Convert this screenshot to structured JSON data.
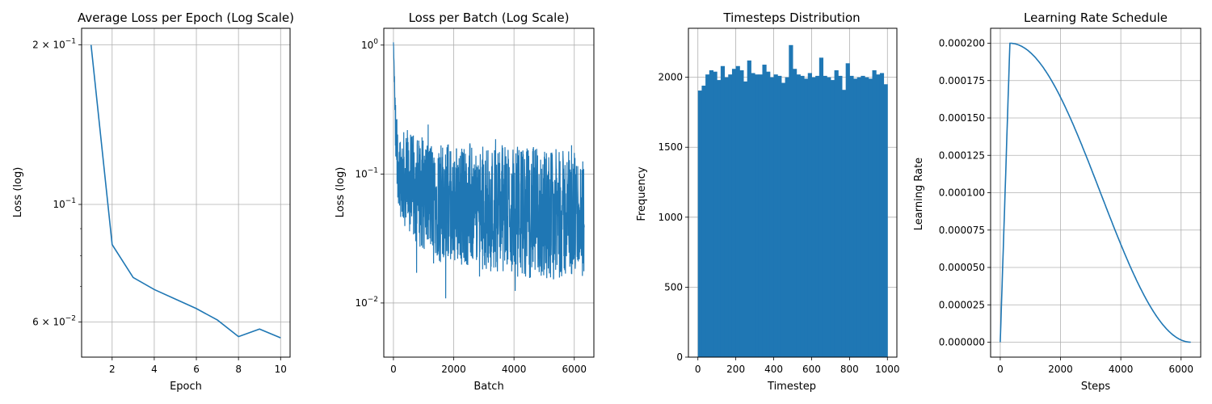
{
  "chart_data": [
    {
      "id": "p1",
      "type": "line",
      "title": "Average Loss per Epoch (Log Scale)",
      "xlabel": "Epoch",
      "ylabel": "Loss (log)",
      "yscale": "log",
      "xlim": [
        0.55,
        10.45
      ],
      "ylim": [
        0.0515,
        0.215
      ],
      "grid": true,
      "color": "#1f77b4",
      "x": [
        1,
        2,
        3,
        4,
        5,
        6,
        7,
        8,
        9,
        10
      ],
      "y": [
        0.2,
        0.084,
        0.0728,
        0.0691,
        0.0663,
        0.0636,
        0.0605,
        0.0563,
        0.0582,
        0.056
      ],
      "xticks": [
        2,
        4,
        6,
        8,
        10
      ],
      "xtick_labels": [
        "2",
        "4",
        "6",
        "8",
        "10"
      ],
      "yticks": [
        0.06,
        0.1,
        0.2
      ],
      "ytick_labels": [
        {
          "base": "6 × 10",
          "exp": "−2"
        },
        {
          "base": "10",
          "exp": "−1"
        },
        {
          "base": "2 × 10",
          "exp": "−1"
        }
      ],
      "minor_yticks": [
        0.07,
        0.08,
        0.09
      ]
    },
    {
      "id": "p2",
      "type": "line",
      "title": "Loss per Batch (Log Scale)",
      "xlabel": "Batch",
      "ylabel": "Loss (log)",
      "yscale": "log",
      "xlim": [
        -320,
        6650
      ],
      "ylim": [
        0.0038,
        1.35
      ],
      "grid": true,
      "color": "#1f77b4",
      "n_points": 6330,
      "envelope": {
        "x": [
          0,
          20,
          60,
          120,
          200,
          300,
          450,
          700,
          1000,
          2000,
          3000,
          4000,
          5000,
          6000,
          6330
        ],
        "upper": [
          1.05,
          0.75,
          0.38,
          0.25,
          0.24,
          0.22,
          0.21,
          0.2,
          0.19,
          0.18,
          0.17,
          0.17,
          0.16,
          0.15,
          0.14
        ],
        "lower": [
          1.05,
          0.6,
          0.12,
          0.07,
          0.05,
          0.04,
          0.035,
          0.03,
          0.025,
          0.02,
          0.018,
          0.016,
          0.015,
          0.015,
          0.015
        ]
      },
      "xticks": [
        0,
        2000,
        4000,
        6000
      ],
      "xtick_labels": [
        "0",
        "2000",
        "4000",
        "6000"
      ],
      "yticks": [
        0.01,
        0.1,
        1
      ],
      "ytick_labels": [
        {
          "base": "10",
          "exp": "−2"
        },
        {
          "base": "10",
          "exp": "−1"
        },
        {
          "base": "10",
          "exp": "0"
        }
      ]
    },
    {
      "id": "p3",
      "type": "bar",
      "title": "Timesteps Distribution",
      "xlabel": "Timestep",
      "ylabel": "Frequency",
      "xlim": [
        -50,
        1050
      ],
      "ylim": [
        0,
        2350
      ],
      "grid": true,
      "color": "#1f77b4",
      "bin_start": 0,
      "bin_width": 20,
      "values": [
        1905,
        1940,
        2020,
        2050,
        2040,
        1980,
        2080,
        2000,
        2020,
        2060,
        2080,
        2050,
        1970,
        2120,
        2030,
        2020,
        2020,
        2090,
        2040,
        2000,
        2020,
        2010,
        1960,
        2000,
        2230,
        2060,
        2020,
        2010,
        1990,
        2030,
        2000,
        2010,
        2140,
        2010,
        2000,
        1980,
        2050,
        2010,
        1910,
        2100,
        2010,
        1990,
        2000,
        2010,
        2000,
        1990,
        2050,
        2020,
        2030,
        1950
      ],
      "xticks": [
        0,
        200,
        400,
        600,
        800,
        1000
      ],
      "xtick_labels": [
        "0",
        "200",
        "400",
        "600",
        "800",
        "1000"
      ],
      "yticks": [
        0,
        500,
        1000,
        1500,
        2000
      ],
      "ytick_labels": [
        "0",
        "500",
        "1000",
        "1500",
        "2000"
      ]
    },
    {
      "id": "p4",
      "type": "line",
      "title": "Learning Rate Schedule",
      "xlabel": "Steps",
      "ylabel": "Learning Rate",
      "xlim": [
        -320,
        6650
      ],
      "ylim": [
        -1e-05,
        0.00021
      ],
      "grid": true,
      "color": "#1f77b4",
      "warmup_steps": 320,
      "total_steps": 6330,
      "max_lr": 0.0002,
      "xticks": [
        0,
        2000,
        4000,
        6000
      ],
      "xtick_labels": [
        "0",
        "2000",
        "4000",
        "6000"
      ],
      "yticks": [
        0,
        2.5e-05,
        5e-05,
        7.5e-05,
        0.0001,
        0.000125,
        0.00015,
        0.000175,
        0.0002
      ],
      "ytick_labels": [
        "0.000000",
        "0.000025",
        "0.000050",
        "0.000075",
        "0.000100",
        "0.000125",
        "0.000150",
        "0.000175",
        "0.000200"
      ]
    }
  ]
}
